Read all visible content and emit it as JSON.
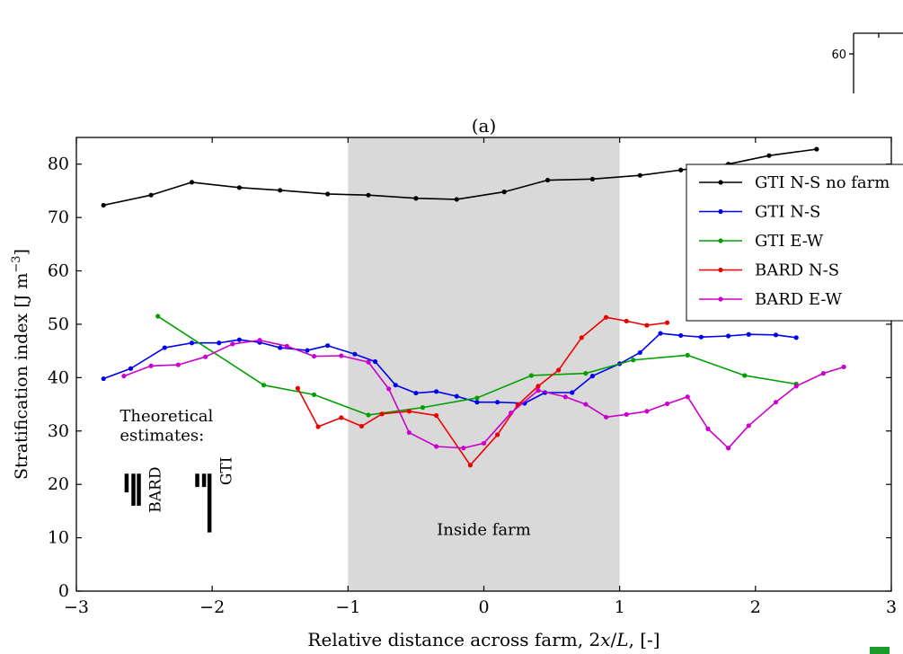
{
  "inset": {
    "tick_label": "60"
  },
  "chart_data": {
    "type": "line",
    "panel_label": "(a)",
    "xlabel": "Relative distance across farm, 2x/L, [-]",
    "ylabel": "Stratification index [J m^-3]",
    "xlim": [
      -3,
      3
    ],
    "ylim": [
      0,
      85
    ],
    "xticks": [
      -3,
      -2,
      -1,
      0,
      1,
      2,
      3
    ],
    "xtick_labels": [
      "−3",
      "−2",
      "−1",
      "0",
      "1",
      "2",
      "3"
    ],
    "yticks": [
      0,
      10,
      20,
      30,
      40,
      50,
      60,
      70,
      80
    ],
    "grid": false,
    "legend_position": "top-right",
    "shaded_region": {
      "x_from": -1,
      "x_to": 1,
      "label": "Inside farm",
      "color": "#d9d9d9"
    },
    "annotation": {
      "line1": "Theoretical",
      "line2": "estimates:",
      "bard_label": "BARD",
      "gti_label": "GTI",
      "bard_bars": [
        [
          -2.63,
          18.5,
          22
        ],
        [
          -2.58,
          16,
          22
        ],
        [
          -2.54,
          16,
          22
        ]
      ],
      "gti_bars": [
        [
          -2.11,
          19.5,
          22
        ],
        [
          -2.06,
          19.5,
          22
        ],
        [
          -2.02,
          11,
          22
        ]
      ]
    },
    "series": [
      {
        "name": "GTI N-S no farm",
        "color": "#000000",
        "x": [
          -2.8,
          -2.45,
          -2.15,
          -1.8,
          -1.5,
          -1.15,
          -0.85,
          -0.5,
          -0.2,
          0.15,
          0.47,
          0.8,
          1.15,
          1.45,
          1.8,
          2.1,
          2.45
        ],
        "y": [
          72.3,
          74.2,
          76.6,
          75.6,
          75.1,
          74.4,
          74.2,
          73.6,
          73.4,
          74.8,
          77.0,
          77.2,
          77.9,
          78.9,
          80.0,
          81.6,
          82.8
        ]
      },
      {
        "name": "GTI N-S",
        "color": "#0000ee",
        "x": [
          -2.8,
          -2.6,
          -2.35,
          -2.15,
          -1.95,
          -1.8,
          -1.65,
          -1.5,
          -1.3,
          -1.15,
          -0.95,
          -0.8,
          -0.65,
          -0.5,
          -0.35,
          -0.2,
          -0.05,
          0.1,
          0.3,
          0.45,
          0.65,
          0.8,
          1.0,
          1.15,
          1.3,
          1.45,
          1.6,
          1.8,
          1.95,
          2.15,
          2.3
        ],
        "y": [
          39.8,
          41.7,
          45.6,
          46.5,
          46.5,
          47.1,
          46.6,
          45.6,
          45.1,
          46.0,
          44.4,
          43.0,
          38.6,
          37.1,
          37.4,
          36.5,
          35.4,
          35.4,
          35.2,
          37.2,
          37.2,
          40.3,
          42.6,
          44.7,
          48.3,
          47.9,
          47.6,
          47.8,
          48.1,
          48.0,
          47.5
        ]
      },
      {
        "name": "GTI E-W",
        "color": "#00a000",
        "x": [
          -2.4,
          -1.62,
          -1.25,
          -0.85,
          -0.45,
          -0.05,
          0.35,
          0.75,
          1.1,
          1.5,
          1.92,
          2.3
        ],
        "y": [
          51.5,
          38.6,
          36.8,
          33.0,
          34.4,
          36.2,
          40.4,
          40.8,
          43.3,
          44.2,
          40.4,
          38.8
        ]
      },
      {
        "name": "BARD N-S",
        "color": "#ee0000",
        "x": [
          -1.37,
          -1.22,
          -1.05,
          -0.9,
          -0.75,
          -0.55,
          -0.35,
          -0.1,
          0.1,
          0.25,
          0.4,
          0.55,
          0.72,
          0.9,
          1.05,
          1.2,
          1.35
        ],
        "y": [
          38.0,
          30.8,
          32.5,
          30.9,
          33.2,
          33.7,
          32.9,
          23.6,
          29.3,
          34.9,
          38.4,
          41.4,
          47.5,
          51.3,
          50.6,
          49.8,
          50.3
        ]
      },
      {
        "name": "BARD E-W",
        "color": "#cc00cc",
        "x": [
          -2.65,
          -2.45,
          -2.25,
          -2.05,
          -1.85,
          -1.65,
          -1.45,
          -1.25,
          -1.05,
          -0.85,
          -0.7,
          -0.55,
          -0.35,
          -0.15,
          0.0,
          0.2,
          0.4,
          0.6,
          0.75,
          0.9,
          1.05,
          1.2,
          1.35,
          1.5,
          1.65,
          1.8,
          1.95,
          2.15,
          2.3,
          2.5,
          2.65
        ],
        "y": [
          40.3,
          42.2,
          42.4,
          43.9,
          46.3,
          47.0,
          45.9,
          44.0,
          44.1,
          42.9,
          37.9,
          29.7,
          27.1,
          26.8,
          27.7,
          33.4,
          37.6,
          36.4,
          35.0,
          32.6,
          33.1,
          33.7,
          35.1,
          36.4,
          30.4,
          26.8,
          31.0,
          35.4,
          38.4,
          40.8,
          42.0
        ]
      }
    ]
  }
}
